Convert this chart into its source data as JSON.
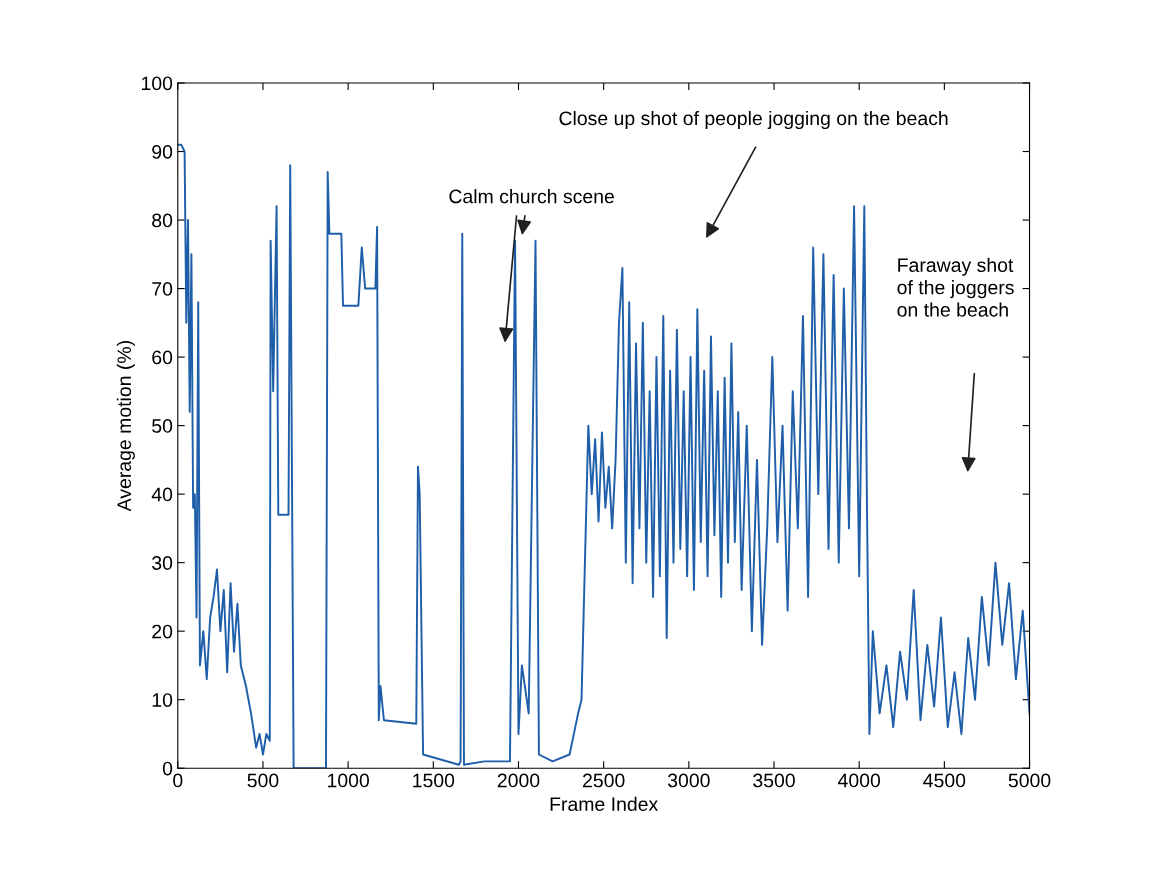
{
  "chart_data": {
    "type": "line",
    "xlabel": "Frame Index",
    "ylabel": "Average motion (%)",
    "xlim": [
      0,
      5000
    ],
    "xticks": [
      0,
      500,
      1000,
      1500,
      2000,
      2500,
      3000,
      3500,
      4000,
      4500,
      5000
    ],
    "ylim": [
      0,
      100
    ],
    "yticks": [
      0,
      10,
      20,
      30,
      40,
      50,
      60,
      70,
      80,
      90,
      100
    ],
    "grid": false,
    "legend": false,
    "marker": "none",
    "line_style": "solid",
    "annotations": [
      "Close up shot of people jogging on the beach",
      "Calm church scene",
      "Faraway shot\nof the joggers\non the beach"
    ],
    "series": [
      {
        "color": "#1f5faa",
        "x": [
          0,
          20,
          40,
          50,
          60,
          70,
          80,
          90,
          100,
          110,
          120,
          130,
          150,
          170,
          190,
          210,
          230,
          250,
          270,
          290,
          310,
          330,
          350,
          370,
          400,
          430,
          460,
          480,
          500,
          520,
          540,
          545,
          560,
          580,
          590,
          640,
          650,
          660,
          680,
          870,
          880,
          890,
          960,
          970,
          1060,
          1080,
          1100,
          1160,
          1170,
          1180,
          1190,
          1210,
          1400,
          1410,
          1420,
          1440,
          1650,
          1660,
          1670,
          1680,
          1800,
          1950,
          1980,
          2000,
          2020,
          2060,
          2100,
          2120,
          2200,
          2300,
          2350,
          2370,
          2390,
          2410,
          2430,
          2450,
          2470,
          2490,
          2510,
          2530,
          2550,
          2570,
          2590,
          2610,
          2630,
          2650,
          2670,
          2690,
          2710,
          2730,
          2750,
          2770,
          2790,
          2810,
          2830,
          2850,
          2870,
          2890,
          2910,
          2930,
          2950,
          2970,
          2990,
          3010,
          3030,
          3050,
          3070,
          3090,
          3110,
          3130,
          3150,
          3170,
          3190,
          3210,
          3230,
          3250,
          3270,
          3290,
          3310,
          3340,
          3370,
          3400,
          3430,
          3460,
          3490,
          3520,
          3550,
          3580,
          3610,
          3640,
          3670,
          3700,
          3730,
          3760,
          3790,
          3820,
          3850,
          3880,
          3910,
          3940,
          3970,
          4000,
          4030,
          4045,
          4060,
          4080,
          4120,
          4160,
          4200,
          4240,
          4280,
          4320,
          4360,
          4400,
          4440,
          4480,
          4520,
          4560,
          4600,
          4640,
          4680,
          4720,
          4760,
          4800,
          4840,
          4880,
          4920,
          4960,
          5000
        ],
        "values": [
          91,
          91,
          90,
          65,
          80,
          52,
          75,
          38,
          40,
          22,
          68,
          15,
          20,
          13,
          22,
          25,
          29,
          20,
          26,
          14,
          27,
          17,
          24,
          15,
          12,
          8,
          3,
          5,
          2,
          5,
          4,
          77,
          55,
          82,
          37,
          37,
          37,
          88,
          0,
          0,
          87,
          78,
          78,
          67.5,
          67.5,
          76,
          70,
          70,
          79,
          7,
          12,
          7,
          6.5,
          44,
          40,
          2,
          0.5,
          1,
          78,
          0.5,
          1,
          1,
          77,
          5,
          15,
          8,
          77,
          2,
          1,
          2,
          8,
          10,
          30,
          50,
          40,
          48,
          36,
          49,
          38,
          44,
          35,
          45,
          65,
          73,
          30,
          68,
          27,
          62,
          35,
          65,
          30,
          55,
          25,
          60,
          28,
          66,
          19,
          58,
          30,
          64,
          32,
          55,
          28,
          60,
          26,
          67,
          33,
          58,
          28,
          63,
          34,
          55,
          25,
          57,
          30,
          62,
          33,
          52,
          26,
          50,
          20,
          45,
          18,
          35,
          60,
          33,
          50,
          23,
          55,
          35,
          66,
          25,
          76,
          40,
          75,
          32,
          72,
          30,
          70,
          35,
          82,
          28,
          82,
          40,
          5,
          20,
          8,
          15,
          6,
          17,
          10,
          26,
          7,
          18,
          9,
          22,
          6,
          14,
          5,
          19,
          10,
          25,
          15,
          30,
          18,
          27,
          13,
          23,
          8
        ]
      }
    ]
  }
}
